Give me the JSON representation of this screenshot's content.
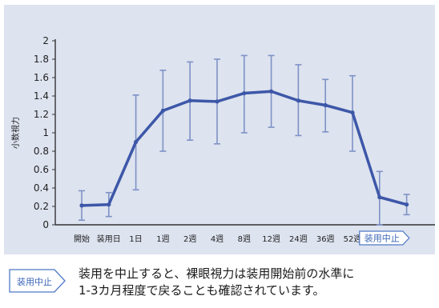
{
  "chart_data": {
    "type": "line",
    "ylabel": "小数視力",
    "ylim": [
      0,
      2
    ],
    "yticks": [
      "0",
      "0.2",
      "0.4",
      "0.6",
      "0.8",
      "1",
      "1.2",
      "1.4",
      "1.6",
      "1.8",
      "2"
    ],
    "categories": [
      "開始",
      "装用日",
      "1日",
      "1週",
      "2週",
      "4週",
      "8週",
      "12週",
      "24週",
      "36週",
      "52週",
      "装用中止",
      ""
    ],
    "values": [
      0.21,
      0.22,
      0.9,
      1.24,
      1.35,
      1.34,
      1.43,
      1.45,
      1.35,
      1.3,
      1.22,
      0.3,
      0.22
    ],
    "error_low": [
      0.05,
      0.09,
      0.38,
      0.8,
      0.92,
      0.88,
      1.0,
      1.06,
      0.97,
      1.01,
      0.8,
      0.0,
      0.11
    ],
    "error_high": [
      0.37,
      0.35,
      1.41,
      1.68,
      1.77,
      1.8,
      1.84,
      1.84,
      1.74,
      1.58,
      1.62,
      0.58,
      0.33
    ],
    "highlight_category": "装用中止",
    "colors": {
      "line": "#3d57a8",
      "error_bar": "#7f92c6",
      "background": "#dde3ef",
      "badge": "#4f78c8"
    }
  },
  "note": {
    "badge": "装用中止",
    "line1": "装用を中止すると、裸眼視力は装用開始前の水準に",
    "line2": "1-3カ月程度で戻ることも確認されています。"
  }
}
